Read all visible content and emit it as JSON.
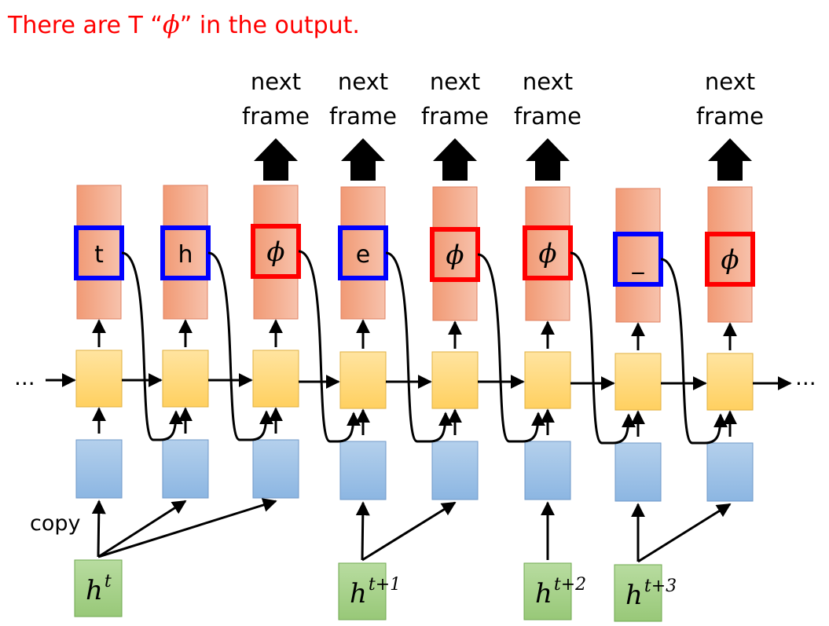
{
  "title": {
    "before": "There are T “",
    "symbol": "ϕ",
    "after": "” in the output."
  },
  "next_frame": {
    "line1": "next",
    "line2": "frame"
  },
  "ellipsis": "...",
  "copy_label": "copy",
  "columns": [
    {
      "token": "t",
      "kind": "char",
      "highlight": "blue",
      "next_frame": false
    },
    {
      "token": "h",
      "kind": "char",
      "highlight": "blue",
      "next_frame": false
    },
    {
      "token": "ϕ",
      "kind": "blank",
      "highlight": "red",
      "next_frame": true
    },
    {
      "token": "e",
      "kind": "char",
      "highlight": "blue",
      "next_frame": true
    },
    {
      "token": "ϕ",
      "kind": "blank",
      "highlight": "red",
      "next_frame": true
    },
    {
      "token": "ϕ",
      "kind": "blank",
      "highlight": "red",
      "next_frame": true
    },
    {
      "token": "_",
      "kind": "char",
      "highlight": "blue",
      "next_frame": false
    },
    {
      "token": "ϕ",
      "kind": "blank",
      "highlight": "red",
      "next_frame": true
    }
  ],
  "hidden_states": [
    {
      "base": "h",
      "sup": "t",
      "feeds_columns": [
        0,
        1,
        2
      ]
    },
    {
      "base": "h",
      "sup": "t+1",
      "feeds_columns": [
        3,
        4
      ]
    },
    {
      "base": "h",
      "sup": "t+2",
      "feeds_columns": [
        5
      ]
    },
    {
      "base": "h",
      "sup": "t+3",
      "feeds_columns": [
        6,
        7
      ]
    }
  ],
  "colors": {
    "title": "#ff0000",
    "output_fill": "#f4a584",
    "rnn_fill": "#ffd97f",
    "input_fill": "#9dc3e6",
    "hidden_fill": "#a9d18e",
    "char_box": "#0000ff",
    "blank_box": "#ff0000",
    "arrow": "#000000"
  }
}
